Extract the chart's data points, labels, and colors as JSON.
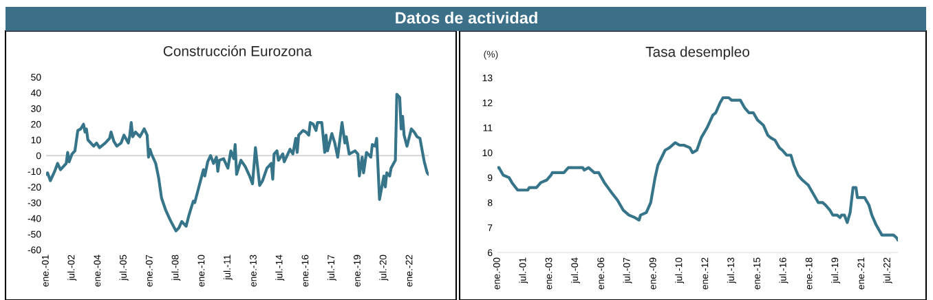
{
  "chart_data": [
    {
      "type": "line",
      "title": "Construcción Eurozona",
      "annotations": [
        "Datos de actividad"
      ],
      "x": [
        "2001-01",
        "2001-02",
        "2001-04",
        "2001-07",
        "2001-09",
        "2001-10",
        "2001-11",
        "2002-03",
        "2002-04",
        "2002-05",
        "2002-07",
        "2002-09",
        "2002-11",
        "2003-01",
        "2003-03",
        "2003-04",
        "2003-05",
        "2003-06",
        "2003-10",
        "2003-12",
        "2004-02",
        "2004-06",
        "2004-09",
        "2004-10",
        "2004-12",
        "2005-02",
        "2005-05",
        "2005-07",
        "2005-10",
        "2005-11",
        "2005-12",
        "2006-01",
        "2006-03",
        "2006-06",
        "2006-09",
        "2006-11",
        "2006-12",
        "2007-01",
        "2007-02",
        "2007-05",
        "2007-07",
        "2007-09",
        "2007-12",
        "2008-03",
        "2008-07",
        "2008-09",
        "2008-11",
        "2009-02",
        "2009-04",
        "2009-07",
        "2009-08",
        "2009-10",
        "2009-12",
        "2010-02",
        "2010-03",
        "2010-05",
        "2010-07",
        "2010-09",
        "2010-11",
        "2010-12",
        "2011-01",
        "2011-04",
        "2011-07",
        "2011-09",
        "2011-11",
        "2011-12",
        "2012-01",
        "2012-04",
        "2012-07",
        "2012-10",
        "2012-12",
        "2013-02",
        "2013-05",
        "2013-07",
        "2013-10",
        "2014-01",
        "2014-02",
        "2014-03",
        "2014-05",
        "2014-06",
        "2014-09",
        "2014-10",
        "2015-02",
        "2015-04",
        "2015-06",
        "2015-07",
        "2015-08",
        "2015-11",
        "2016-01",
        "2016-03",
        "2016-04",
        "2016-06",
        "2016-08",
        "2016-09",
        "2016-12",
        "2017-02",
        "2017-03",
        "2017-04",
        "2017-07",
        "2017-09",
        "2017-11",
        "2018-02",
        "2018-04",
        "2018-05",
        "2018-07",
        "2018-11",
        "2019-01",
        "2019-02",
        "2019-04",
        "2019-05",
        "2019-07",
        "2019-10",
        "2019-11",
        "2020-01",
        "2020-02",
        "2020-04",
        "2020-07",
        "2020-08",
        "2020-09",
        "2020-11",
        "2020-12",
        "2021-03",
        "2021-04",
        "2021-06",
        "2021-07",
        "2021-08",
        "2021-09",
        "2021-11",
        "2022-02",
        "2022-04",
        "2022-06",
        "2022-08",
        "2022-10",
        "2022-11",
        "2023-01",
        "2023-02"
      ],
      "series": [
        {
          "color": "#367589",
          "values": [
            -12,
            -11,
            -16,
            -10,
            -5,
            -7,
            -9,
            -5,
            2,
            -4,
            1,
            3,
            16,
            17,
            20,
            15,
            17,
            10,
            6,
            8,
            5,
            8,
            11,
            15,
            9,
            6,
            8,
            13,
            8,
            13,
            21,
            12,
            15,
            12,
            17,
            13,
            -1,
            4,
            1,
            -5,
            -14,
            -27,
            -35,
            -41,
            -48,
            -46,
            -42,
            -45,
            -38,
            -29,
            -30,
            -23,
            -16,
            -9,
            -13,
            -4,
            0,
            -5,
            -1,
            -10,
            -3,
            -2,
            -8,
            3,
            -2,
            7,
            -12,
            -3,
            -7,
            -13,
            -18,
            5,
            -19,
            -16,
            -8,
            -5,
            -15,
            1,
            3,
            -3,
            1,
            -4,
            4,
            1,
            11,
            2,
            13,
            16,
            15,
            13,
            21,
            20,
            16,
            21,
            21,
            2,
            13,
            3,
            14,
            8,
            -1,
            21,
            8,
            12,
            1,
            3,
            1,
            -13,
            -1,
            -11,
            2,
            -1,
            7,
            6,
            11,
            -28,
            -13,
            -20,
            -11,
            -13,
            -8,
            -3,
            39,
            37,
            17,
            25,
            13,
            6,
            17,
            15,
            12,
            11,
            1,
            -4,
            -11,
            -12
          ]
        }
      ],
      "xlim": [
        "2001-01",
        "2023-02"
      ],
      "ylim": [
        -60,
        50
      ],
      "yticks": [
        -60,
        -50,
        -40,
        -30,
        -20,
        -10,
        0,
        10,
        20,
        30,
        40,
        50
      ],
      "xticks": [
        {
          "value": "2001-01",
          "label": "ene.-01"
        },
        {
          "value": "2002-07",
          "label": "jul.-02"
        },
        {
          "value": "2004-01",
          "label": "ene.-04"
        },
        {
          "value": "2005-07",
          "label": "jul.-05"
        },
        {
          "value": "2007-01",
          "label": "ene.-07"
        },
        {
          "value": "2008-07",
          "label": "jul.-08"
        },
        {
          "value": "2010-01",
          "label": "ene.-10"
        },
        {
          "value": "2011-07",
          "label": "jul.-11"
        },
        {
          "value": "2013-01",
          "label": "ene.-13"
        },
        {
          "value": "2014-07",
          "label": "jul.-14"
        },
        {
          "value": "2016-01",
          "label": "ene.-16"
        },
        {
          "value": "2017-07",
          "label": "jul.-17"
        },
        {
          "value": "2019-01",
          "label": "ene.-19"
        },
        {
          "value": "2020-07",
          "label": "jul.-20"
        },
        {
          "value": "2022-01",
          "label": "ene.-22"
        }
      ],
      "ref_lines": [
        {
          "axis": "y",
          "value": 0,
          "color": "#d9d9d9"
        }
      ],
      "grid": false,
      "marker": "none",
      "line_style": "solid"
    },
    {
      "type": "line",
      "title": "Tasa desempleo",
      "ylabel": "(%)",
      "x": [
        "2000-01",
        "2000-02",
        "2000-05",
        "2000-09",
        "2000-11",
        "2001-03",
        "2001-10",
        "2001-11",
        "2002-04",
        "2002-07",
        "2002-11",
        "2003-02",
        "2003-03",
        "2003-11",
        "2004-02",
        "2004-12",
        "2005-01",
        "2005-04",
        "2005-08",
        "2005-11",
        "2006-03",
        "2006-08",
        "2006-12",
        "2007-04",
        "2007-08",
        "2007-12",
        "2008-03",
        "2008-04",
        "2008-08",
        "2008-11",
        "2009-02",
        "2009-04",
        "2009-09",
        "2009-12",
        "2010-04",
        "2010-07",
        "2010-10",
        "2011-02",
        "2011-04",
        "2011-07",
        "2011-10",
        "2012-02",
        "2012-06",
        "2012-08",
        "2012-11",
        "2013-01",
        "2013-05",
        "2013-07",
        "2013-11",
        "2014-01",
        "2014-04",
        "2014-07",
        "2014-10",
        "2015-01",
        "2015-05",
        "2015-08",
        "2015-10",
        "2016-01",
        "2016-04",
        "2016-06",
        "2016-09",
        "2016-12",
        "2017-02",
        "2017-05",
        "2017-08",
        "2017-12",
        "2018-04",
        "2018-07",
        "2018-10",
        "2018-12",
        "2019-03",
        "2019-05",
        "2019-08",
        "2019-10",
        "2019-11",
        "2020-01",
        "2020-03",
        "2020-05",
        "2020-07",
        "2020-09",
        "2020-10",
        "2021-03",
        "2021-06",
        "2021-08",
        "2021-11",
        "2022-03",
        "2022-11",
        "2023-01",
        "2023-02"
      ],
      "series": [
        {
          "color": "#367589",
          "values": [
            9.4,
            9.4,
            9.1,
            9.0,
            8.8,
            8.5,
            8.5,
            8.6,
            8.6,
            8.8,
            8.9,
            9.1,
            9.2,
            9.2,
            9.4,
            9.4,
            9.3,
            9.4,
            9.2,
            9.2,
            8.8,
            8.4,
            8.1,
            7.7,
            7.5,
            7.4,
            7.3,
            7.5,
            7.6,
            8.0,
            9.0,
            9.5,
            10.1,
            10.2,
            10.4,
            10.3,
            10.3,
            10.2,
            10.0,
            10.1,
            10.6,
            11.0,
            11.5,
            11.6,
            12.0,
            12.2,
            12.2,
            12.1,
            12.1,
            12.1,
            11.8,
            11.6,
            11.6,
            11.3,
            11.1,
            10.7,
            10.6,
            10.5,
            10.2,
            10.1,
            9.9,
            9.9,
            9.5,
            9.1,
            8.9,
            8.7,
            8.3,
            8.0,
            8.0,
            7.9,
            7.7,
            7.5,
            7.5,
            7.4,
            7.5,
            7.5,
            7.2,
            7.6,
            8.6,
            8.6,
            8.2,
            8.2,
            7.9,
            7.5,
            7.1,
            6.7,
            6.7,
            6.6,
            6.5
          ]
        }
      ],
      "xlim": [
        "2000-01",
        "2023-02"
      ],
      "ylim": [
        6,
        13
      ],
      "yticks": [
        6,
        7,
        8,
        9,
        10,
        11,
        12,
        13
      ],
      "xticks": [
        {
          "value": "2000-01",
          "label": "ene.-00"
        },
        {
          "value": "2001-07",
          "label": "jul.-01"
        },
        {
          "value": "2003-01",
          "label": "ene.-03"
        },
        {
          "value": "2004-07",
          "label": "jul.-04"
        },
        {
          "value": "2006-01",
          "label": "ene.-06"
        },
        {
          "value": "2007-07",
          "label": "jul.-07"
        },
        {
          "value": "2009-01",
          "label": "ene.-09"
        },
        {
          "value": "2010-07",
          "label": "jul.-10"
        },
        {
          "value": "2012-01",
          "label": "ene.-12"
        },
        {
          "value": "2013-07",
          "label": "jul.-13"
        },
        {
          "value": "2015-01",
          "label": "ene.-15"
        },
        {
          "value": "2016-07",
          "label": "jul.-16"
        },
        {
          "value": "2018-01",
          "label": "ene.-18"
        },
        {
          "value": "2019-07",
          "label": "jul.-19"
        },
        {
          "value": "2021-01",
          "label": "ene.-21"
        },
        {
          "value": "2022-07",
          "label": "jul.-22"
        }
      ],
      "grid": false,
      "marker": "none",
      "line_style": "solid"
    }
  ]
}
